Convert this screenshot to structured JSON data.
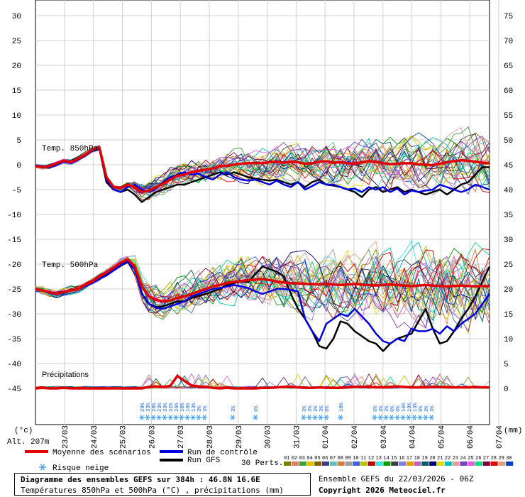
{
  "chart_data": {
    "type": "line",
    "left_axis_unit": "(°c)",
    "right_axis_unit": "(mm)",
    "altitude_label": "Alt. 207m",
    "left_ticks": [
      30,
      25,
      20,
      15,
      10,
      5,
      0,
      -5,
      -10,
      -15,
      -20,
      -25,
      -30,
      -35,
      -40,
      -45
    ],
    "right_ticks": [
      75,
      70,
      65,
      60,
      55,
      50,
      45,
      40,
      35,
      30,
      25,
      20,
      15,
      10,
      5,
      0
    ],
    "dates": [
      "23/03",
      "24/03",
      "25/03",
      "26/03",
      "27/03",
      "28/03",
      "29/03",
      "30/03",
      "31/03",
      "01/04",
      "02/04",
      "03/04",
      "04/04",
      "05/04",
      "06/04",
      "07/04"
    ],
    "panels": {
      "t850_label": "Temp. 850hPa",
      "t500_label": "Temp. 500hPa",
      "precip_label": "Précipitations"
    },
    "series": [
      {
        "name": "Moyenne des scénarios",
        "color": "#e00000",
        "t850": [
          -0.3,
          -0.5,
          -0.3,
          0.3,
          0.8,
          0.5,
          1.2,
          2.0,
          3.0,
          3.5,
          -2.5,
          -4.5,
          -4.8,
          -4.0,
          -4.5,
          -5.5,
          -5.2,
          -4.5,
          -3.8,
          -3.0,
          -2.2,
          -2.0,
          -1.5,
          -1.2,
          -1.0,
          -0.8,
          -0.3,
          -0.2,
          0.0,
          0.2,
          0.3,
          0.4,
          0.3,
          0.5,
          0.6,
          0.4,
          0.6,
          0.5,
          0.2,
          0.3,
          0.6,
          0.7,
          0.4,
          0.5,
          0.3,
          0.2,
          0.5,
          0.7,
          0.6,
          0.3,
          0.1,
          0.2,
          0.3,
          0.3,
          0.1,
          0.0,
          -0.1,
          0.2,
          0.5,
          0.7,
          0.9,
          0.8,
          0.6,
          0.4,
          0.3
        ],
        "t500": [
          -25,
          -25.3,
          -25.7,
          -26,
          -25.6,
          -25.3,
          -25,
          -24.2,
          -23.5,
          -22.5,
          -21.7,
          -20.7,
          -19.7,
          -19,
          -20.5,
          -24.5,
          -26.5,
          -27.2,
          -27.5,
          -27.3,
          -26.8,
          -26.5,
          -26,
          -25.5,
          -25,
          -24.5,
          -24.2,
          -23.8,
          -23.6,
          -23.4,
          -23.2,
          -23.1,
          -23,
          -23.2,
          -23.5,
          -23.7,
          -23.8,
          -23.9,
          -24,
          -24,
          -24.1,
          -24,
          -24.1,
          -24.2,
          -24.1,
          -24,
          -24.1,
          -24.2,
          -24.3,
          -24.2,
          -24.1,
          -24.2,
          -24.3,
          -24.4,
          -24.3,
          -24.2,
          -24.3,
          -24.4,
          -24.5,
          -24.4,
          -24.3,
          -24.4,
          -24.5,
          -24.4,
          -24.5
        ],
        "precip": [
          0,
          0.1,
          0,
          0,
          0.1,
          0,
          0,
          0,
          0,
          0,
          0,
          0,
          0,
          0,
          0,
          0,
          0.3,
          0.4,
          0.3,
          0.5,
          2.5,
          1.5,
          0.6,
          0.4,
          0.3,
          0.1,
          0,
          0.1,
          0,
          0,
          0,
          0,
          0.1,
          0.1,
          0.2,
          0.3,
          0.3,
          0.2,
          0.1,
          0.1,
          0.2,
          0.1,
          0.1,
          0.1,
          0.2,
          0.3,
          0.3,
          0.3,
          0.2,
          0.2,
          0.3,
          0.4,
          0.3,
          0.2,
          0.2,
          0.2,
          0.3,
          0.3,
          0.2,
          0.2,
          0.2,
          0.2,
          0.3,
          0.2,
          0.2
        ]
      },
      {
        "name": "Run de contrôle",
        "color": "#0000e0",
        "t850": [
          -0.2,
          -0.4,
          -0.6,
          0.0,
          0.6,
          0.3,
          1.0,
          1.8,
          2.8,
          3.3,
          -3.0,
          -5.0,
          -5.5,
          -4.5,
          -4.0,
          -5.0,
          -5.5,
          -4.8,
          -3.5,
          -2.5,
          -2.0,
          -1.5,
          -2.0,
          -1.8,
          -2.5,
          -3.0,
          -2.0,
          -1.5,
          -2.5,
          -3.0,
          -3.2,
          -3.0,
          -3.5,
          -4.0,
          -3.2,
          -4.0,
          -4.5,
          -3.5,
          -5.0,
          -4.3,
          -3.5,
          -4.0,
          -4.0,
          -4.5,
          -5.0,
          -4.8,
          -5.5,
          -4.5,
          -5.0,
          -4.5,
          -5.5,
          -4.8,
          -6.0,
          -5.2,
          -5.5,
          -5.2,
          -5.0,
          -4.0,
          -4.5,
          -5.0,
          -5.5,
          -5.0,
          -4.0,
          -4.5,
          -5.0
        ],
        "t500": [
          -25,
          -25.3,
          -25.6,
          -26,
          -25.8,
          -25.3,
          -25,
          -24.5,
          -23.8,
          -23,
          -22.3,
          -21.2,
          -20.2,
          -19.5,
          -21,
          -26,
          -28,
          -28.8,
          -29,
          -28.5,
          -28,
          -27.5,
          -26.5,
          -26,
          -25.5,
          -25,
          -24.8,
          -24.5,
          -24.2,
          -24.5,
          -24.8,
          -25.5,
          -26,
          -25.5,
          -25,
          -25,
          -25.2,
          -25.5,
          -31,
          -33.5,
          -35.5,
          -32,
          -31,
          -30,
          -30.5,
          -29,
          -30.5,
          -32,
          -34,
          -35.5,
          -36,
          -35,
          -35.5,
          -33,
          -33.5,
          -33.5,
          -33,
          -34,
          -32.5,
          -33.5,
          -32,
          -31,
          -30,
          -28,
          -26
        ]
      },
      {
        "name": "Run GFS",
        "color": "#000000",
        "t850": [
          -0.4,
          -0.4,
          -0.4,
          0.2,
          0.6,
          0.4,
          1.2,
          2.0,
          2.8,
          3.3,
          -3.5,
          -5.0,
          -5.5,
          -5.0,
          -6.0,
          -7.5,
          -6.5,
          -5.5,
          -5.0,
          -4.5,
          -4.0,
          -4.0,
          -3.5,
          -3.0,
          -2.5,
          -2.0,
          -1.5,
          -2.0,
          -1.5,
          -2.0,
          -2.5,
          -2.8,
          -3.0,
          -3.2,
          -3.0,
          -3.5,
          -4.0,
          -3.5,
          -4.5,
          -3.5,
          -3.0,
          -4.0,
          -4.2,
          -4.5,
          -5.0,
          -5.5,
          -6.5,
          -5.0,
          -4.5,
          -5.5,
          -5.0,
          -4.5,
          -5.5,
          -5.0,
          -5.5,
          -6.0,
          -5.5,
          -5.0,
          -6.0,
          -5.0,
          -4.0,
          -3.5,
          -2.0,
          -0.5,
          -0.5
        ],
        "t500": [
          -25,
          -25.3,
          -25.6,
          -26,
          -25.8,
          -25.3,
          -25,
          -24.5,
          -23.8,
          -23,
          -22.2,
          -21.2,
          -20.3,
          -19.6,
          -21,
          -26,
          -28,
          -28.6,
          -28.5,
          -28,
          -27.5,
          -27.5,
          -26.8,
          -26.4,
          -26,
          -25.5,
          -25,
          -24.2,
          -23.8,
          -23.5,
          -23.6,
          -22,
          -20.5,
          -21,
          -21.5,
          -22.5,
          -26,
          -29,
          -31,
          -33.5,
          -36.5,
          -37,
          -35,
          -31.5,
          -32,
          -33.5,
          -34.5,
          -35.5,
          -36,
          -37.5,
          -36,
          -35,
          -34.5,
          -34,
          -31.5,
          -29,
          -33,
          -36,
          -35.5,
          -33.5,
          -31,
          -29,
          -26.5,
          -23.5,
          -20.5
        ]
      }
    ],
    "snow_risk": [
      "29%",
      "33%",
      "28%",
      "23%",
      "33%",
      "32%",
      "26%",
      "18%",
      "16%",
      "13%",
      "3%",
      "3%",
      "3%",
      "6%",
      "3%",
      "3%",
      "3%",
      "3%",
      "6%",
      "10%",
      "6%",
      "3%",
      "3%",
      "6%",
      "6%",
      "16%",
      "10%",
      "13%",
      "6%",
      "3%",
      "3%"
    ],
    "perturbations_label": "30 Perts.",
    "perturbation_numbers": [
      "01",
      "02",
      "03",
      "04",
      "05",
      "06",
      "07",
      "08",
      "09",
      "10",
      "11",
      "12",
      "13",
      "14",
      "15",
      "16",
      "17",
      "18",
      "19",
      "20",
      "21",
      "22",
      "23",
      "24",
      "25",
      "26",
      "27",
      "28",
      "29",
      "30"
    ],
    "perturbation_colors": [
      "#808000",
      "#e08060",
      "#40a040",
      "#e0c000",
      "#806000",
      "#404080",
      "#60c0c0",
      "#d08040",
      "#a0a0a0",
      "#4060e0",
      "#c0c000",
      "#c00000",
      "#40e0e0",
      "#00a000",
      "#404040",
      "#8080e0",
      "#e0a000",
      "#c060c0",
      "#006060",
      "#000080",
      "#e0e000",
      "#00c0c0",
      "#e0a0a0",
      "#8040c0",
      "#e060e0",
      "#00e080",
      "#800040",
      "#e00000",
      "#e0a080",
      "#0040c0"
    ]
  },
  "legend": {
    "mean": "Moyenne des scénarios",
    "control": "Run de contrôle",
    "gfs": "Run GFS",
    "snow": "Risque neige",
    "mean_color": "#e00000",
    "control_color": "#0000e0",
    "gfs_color": "#000000",
    "snow_color": "#40a0ff"
  },
  "footer": {
    "title": "Diagramme des ensembles GEFS sur 384h : 46.8N 16.6E",
    "subtitle": "Températures 850hPa et 500hPa (°C) , précipitations (mm)",
    "run": "Ensemble GEFS du 22/03/2026 - 06Z",
    "copyright": "Copyright 2026 Meteociel.fr"
  }
}
